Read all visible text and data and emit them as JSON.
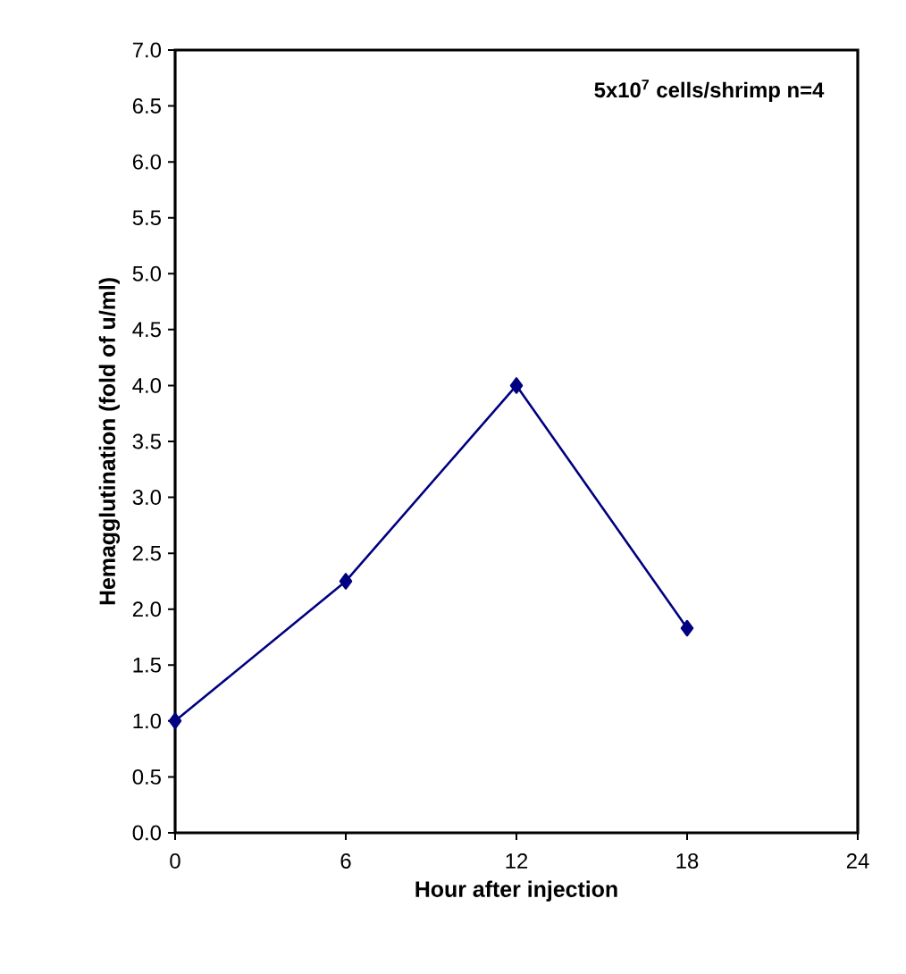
{
  "chart_data": {
    "type": "line",
    "xlabel": "Hour after injection",
    "ylabel": "Hemagglutination (fold of u/ml)",
    "annotations": [
      "5x10$^{7}$ cells/shrimp    n=4"
    ],
    "x": [
      0,
      6,
      12,
      18
    ],
    "series": [
      {
        "color": "#000080",
        "values": [
          1.0,
          2.25,
          4.0,
          1.83
        ]
      }
    ],
    "xlim": [
      0,
      24
    ],
    "xticks": [
      0,
      6,
      12,
      18,
      24
    ],
    "ylim": [
      0,
      7
    ],
    "yticks": [
      {
        "value": 0,
        "label": "0.0"
      },
      {
        "value": 0.5,
        "label": "0.5"
      },
      {
        "value": 1,
        "label": "1.0"
      },
      {
        "value": 1.5,
        "label": "1.5"
      },
      {
        "value": 2,
        "label": "2.0"
      },
      {
        "value": 2.5,
        "label": "2.5"
      },
      {
        "value": 3,
        "label": "3.0"
      },
      {
        "value": 3.5,
        "label": "3.5"
      },
      {
        "value": 4,
        "label": "4.0"
      },
      {
        "value": 4.5,
        "label": "4.5"
      },
      {
        "value": 5,
        "label": "5.0"
      },
      {
        "value": 5.5,
        "label": "5.5"
      },
      {
        "value": 6,
        "label": "6.0"
      },
      {
        "value": 6.5,
        "label": "6.5"
      },
      {
        "value": 7,
        "label": "7.0"
      }
    ],
    "grid": false,
    "marker": "diamond",
    "line_style": "solid"
  }
}
